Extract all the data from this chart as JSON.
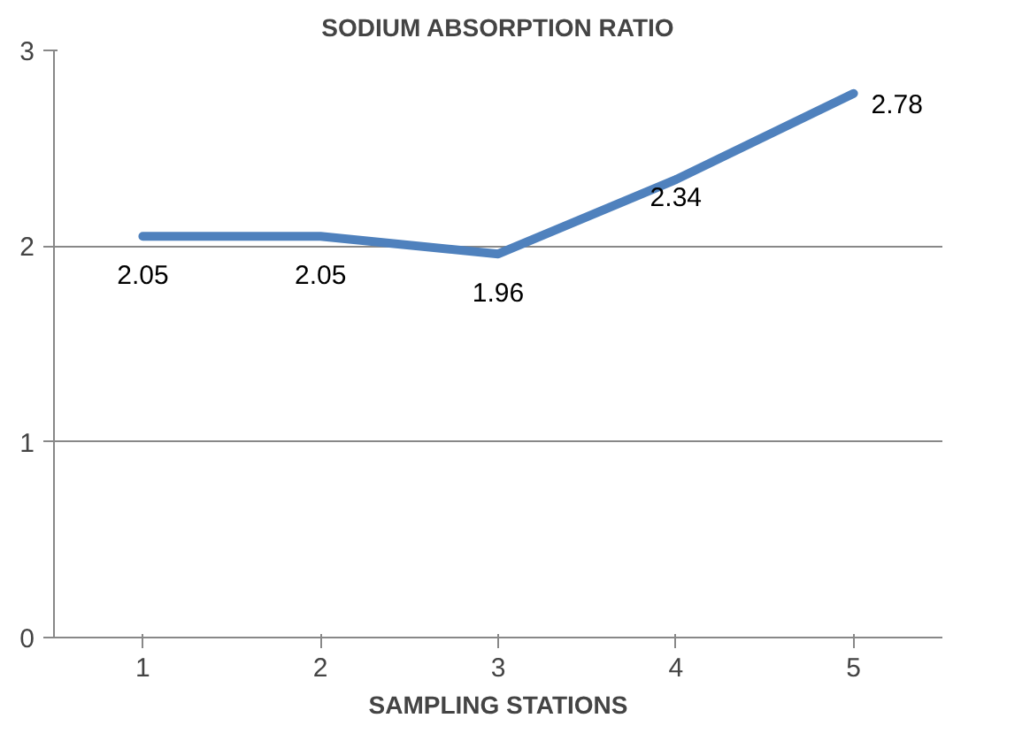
{
  "chart_data": {
    "type": "line",
    "title": "SODIUM ABSORPTION RATIO",
    "xlabel": "SAMPLING STATIONS",
    "categories": [
      "1",
      "2",
      "3",
      "4",
      "5"
    ],
    "series": [
      {
        "color": "#4f81bd",
        "values": [
          2.05,
          2.05,
          1.96,
          2.34,
          2.78
        ]
      }
    ],
    "ylim": [
      0,
      3
    ],
    "yticks": [
      0,
      1,
      2,
      3
    ],
    "grid": "y",
    "data_labels": true,
    "marker": "none",
    "line_style": "solid"
  }
}
